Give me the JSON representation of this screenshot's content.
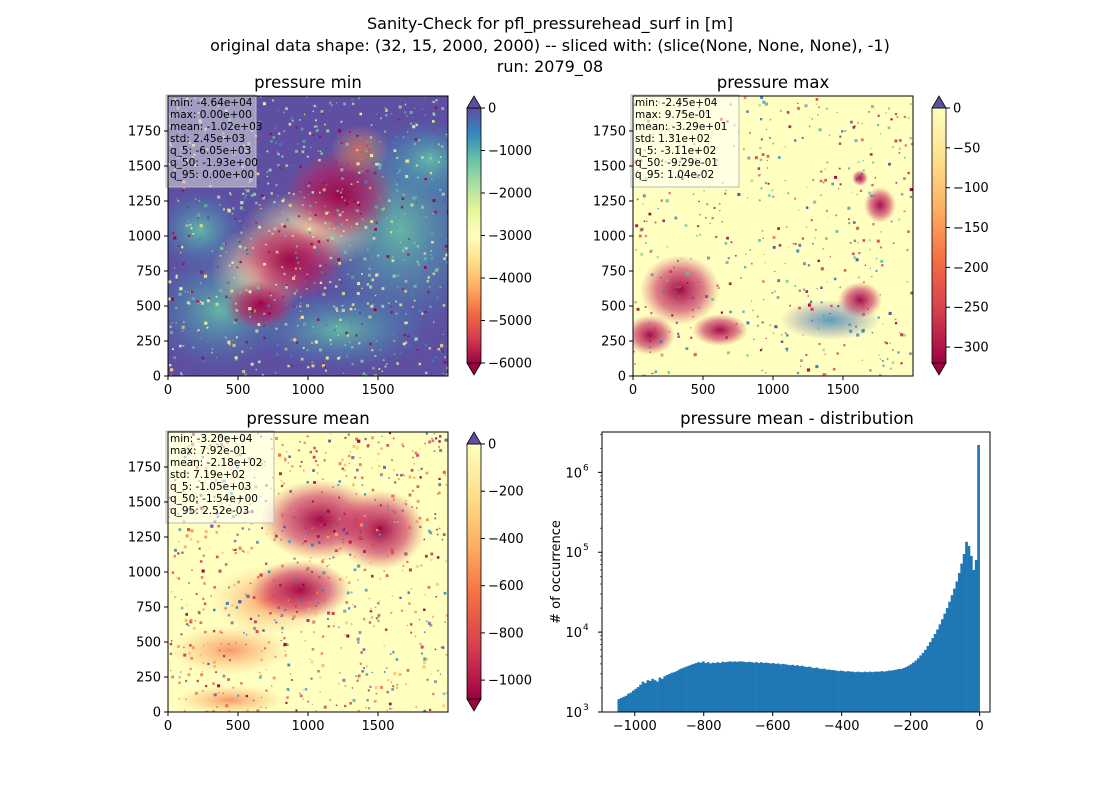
{
  "figure": {
    "suptitle": [
      "Sanity-Check for pfl_pressurehead_surf in [m]",
      "original data shape: (32, 15, 2000, 2000) -- sliced with: (slice(None, None, None), -1)",
      "run: 2079_08"
    ]
  },
  "chart_data": [
    {
      "type": "heatmap",
      "title": "pressure min",
      "colormap": "Spectral",
      "over_color": "#5e4fa2",
      "under_color": "#9e0142",
      "xticks": [
        0,
        500,
        1000,
        1500
      ],
      "yticks": [
        0,
        250,
        500,
        750,
        1000,
        1250,
        1500,
        1750
      ],
      "xlim": [
        0,
        2000
      ],
      "ylim": [
        0,
        2000
      ],
      "colorbar": {
        "range": [
          -6000,
          0
        ],
        "ticks": [
          0,
          -1000,
          -2000,
          -3000,
          -4000,
          -5000,
          -6000
        ],
        "extend": "both"
      },
      "stats": [
        "min: -4.64e+04",
        "max: 0.00e+00",
        "mean: -1.02e+03",
        "std: 2.45e+03",
        "q_5: -6.05e+03",
        "q_50: -1.93e+00",
        "q_95: 0.00e+00"
      ]
    },
    {
      "type": "heatmap",
      "title": "pressure max",
      "colormap": "Spectral",
      "over_color": "#5e4fa2",
      "under_color": "#9e0142",
      "xticks": [
        0,
        500,
        1000,
        1500
      ],
      "yticks": [
        0,
        250,
        500,
        750,
        1000,
        1250,
        1500,
        1750
      ],
      "xlim": [
        0,
        2000
      ],
      "ylim": [
        0,
        2000
      ],
      "colorbar": {
        "range": [
          -320,
          0
        ],
        "ticks": [
          0,
          -50,
          -100,
          -150,
          -200,
          -250,
          -300
        ],
        "extend": "both"
      },
      "stats": [
        "min: -2.45e+04",
        "max: 9.75e-01",
        "mean: -3.29e+01",
        "std: 1.31e+02",
        "q_5: -3.11e+02",
        "q_50: -9.29e-01",
        "q_95: 1.04e-02"
      ]
    },
    {
      "type": "heatmap",
      "title": "pressure mean",
      "colormap": "Spectral",
      "over_color": "#5e4fa2",
      "under_color": "#9e0142",
      "xticks": [
        0,
        500,
        1000,
        1500
      ],
      "yticks": [
        0,
        250,
        500,
        750,
        1000,
        1250,
        1500,
        1750
      ],
      "xlim": [
        0,
        2000
      ],
      "ylim": [
        0,
        2000
      ],
      "colorbar": {
        "range": [
          -1080,
          0
        ],
        "ticks": [
          0,
          -200,
          -400,
          -600,
          -800,
          -1000
        ],
        "extend": "both"
      },
      "stats": [
        "min: -3.20e+04",
        "max: 7.92e-01",
        "mean: -2.18e+02",
        "std: 7.19e+02",
        "q_5: -1.05e+03",
        "q_50: -1.54e+00",
        "q_95: 2.52e-03"
      ]
    },
    {
      "type": "bar",
      "title": "pressure mean - distribution",
      "xlabel": "",
      "ylabel": "# of occurrence",
      "yscale": "log",
      "color": "#1f77b4",
      "xlim": [
        -1095,
        30
      ],
      "ylim": [
        1000,
        3200000
      ],
      "xticks": [
        -1000,
        -800,
        -600,
        -400,
        -200,
        0
      ],
      "xticklabels": [
        "−1000",
        "−800",
        "−600",
        "−400",
        "−200",
        "0"
      ],
      "yticks": [
        1000,
        10000,
        100000,
        1000000
      ],
      "ytick_bases": [
        "10",
        "10",
        "10",
        "10"
      ],
      "ytick_exps": [
        "3",
        "4",
        "5",
        "6"
      ],
      "bin_width": 7,
      "x": [
        -1050,
        -1043,
        -1036,
        -1029,
        -1022,
        -1015,
        -1008,
        -1001,
        -994,
        -987,
        -980,
        -973,
        -966,
        -959,
        -952,
        -945,
        -938,
        -931,
        -924,
        -917,
        -910,
        -903,
        -896,
        -889,
        -882,
        -875,
        -868,
        -861,
        -854,
        -847,
        -840,
        -833,
        -826,
        -819,
        -812,
        -805,
        -798,
        -791,
        -784,
        -777,
        -770,
        -763,
        -756,
        -749,
        -742,
        -735,
        -728,
        -721,
        -714,
        -707,
        -700,
        -693,
        -686,
        -679,
        -672,
        -665,
        -658,
        -651,
        -644,
        -637,
        -630,
        -623,
        -616,
        -609,
        -602,
        -595,
        -588,
        -581,
        -574,
        -567,
        -560,
        -553,
        -546,
        -539,
        -532,
        -525,
        -518,
        -511,
        -504,
        -497,
        -490,
        -483,
        -476,
        -469,
        -462,
        -455,
        -448,
        -441,
        -434,
        -427,
        -420,
        -413,
        -406,
        -399,
        -392,
        -385,
        -378,
        -371,
        -364,
        -357,
        -350,
        -343,
        -336,
        -329,
        -322,
        -315,
        -308,
        -301,
        -294,
        -287,
        -280,
        -273,
        -266,
        -259,
        -252,
        -245,
        -238,
        -231,
        -224,
        -217,
        -210,
        -203,
        -196,
        -189,
        -182,
        -175,
        -168,
        -161,
        -154,
        -147,
        -140,
        -133,
        -126,
        -119,
        -112,
        -105,
        -98,
        -91,
        -84,
        -77,
        -70,
        -63,
        -56,
        -49,
        -42,
        -35,
        -28,
        -21,
        -14,
        -7
      ],
      "values": [
        1450,
        1500,
        1550,
        1600,
        1700,
        1750,
        1850,
        1950,
        2050,
        2200,
        2400,
        2300,
        2500,
        2450,
        2600,
        2500,
        2400,
        2700,
        2600,
        2800,
        2900,
        3000,
        3100,
        3150,
        3250,
        3400,
        3500,
        3600,
        3700,
        3800,
        3900,
        4000,
        4100,
        4200,
        4150,
        4300,
        4100,
        4200,
        4050,
        4150,
        4100,
        4200,
        4100,
        4250,
        4200,
        4250,
        4300,
        4250,
        4300,
        4250,
        4300,
        4300,
        4250,
        4200,
        4250,
        4200,
        4150,
        4200,
        4100,
        4200,
        4100,
        4150,
        4100,
        4050,
        4100,
        4000,
        4050,
        3950,
        4000,
        3950,
        3900,
        3850,
        3900,
        3800,
        3850,
        3750,
        3800,
        3700,
        3650,
        3700,
        3600,
        3550,
        3600,
        3500,
        3450,
        3500,
        3400,
        3400,
        3350,
        3350,
        3300,
        3250,
        3300,
        3250,
        3200,
        3250,
        3200,
        3200,
        3150,
        3200,
        3150,
        3150,
        3200,
        3150,
        3200,
        3150,
        3200,
        3200,
        3200,
        3250,
        3200,
        3250,
        3300,
        3300,
        3350,
        3400,
        3450,
        3450,
        3550,
        3650,
        3800,
        3950,
        4150,
        4400,
        4700,
        5100,
        5500,
        6000,
        6700,
        7500,
        8400,
        9500,
        10800,
        12500,
        14500,
        17000,
        20000,
        24000,
        29000,
        35000,
        43000,
        55000,
        72000,
        95000,
        135000,
        120000,
        90000,
        60000,
        80000,
        2200000
      ]
    }
  ]
}
